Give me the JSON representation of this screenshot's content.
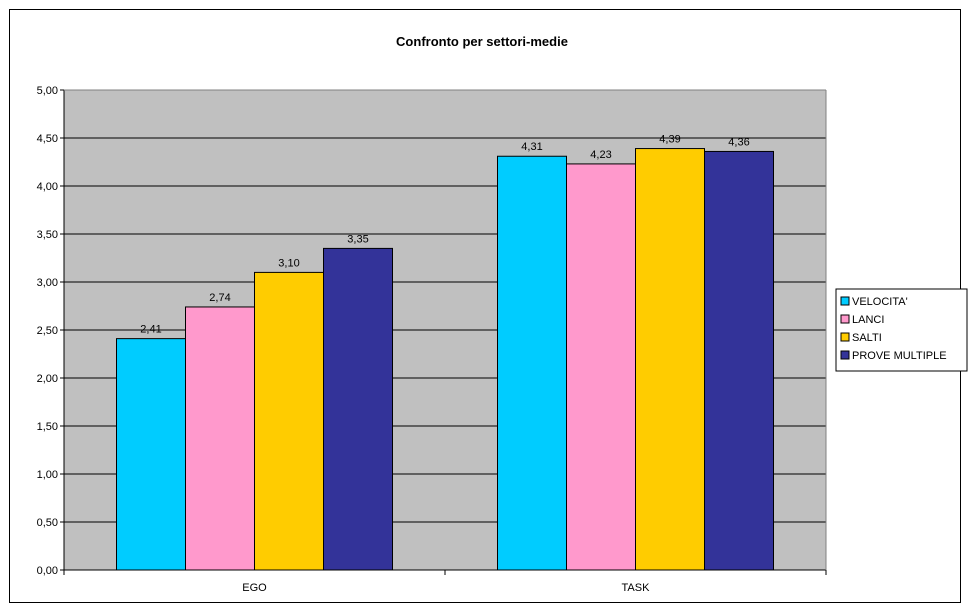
{
  "chart_data": {
    "type": "bar",
    "title": "Confronto per settori-medie",
    "categories": [
      "EGO",
      "TASK"
    ],
    "series": [
      {
        "name": "VELOCITA'",
        "color": "#00ccff",
        "values": [
          2.41,
          4.31
        ],
        "labels": [
          "2,41",
          "4,31"
        ]
      },
      {
        "name": "LANCI",
        "color": "#ff99cc",
        "values": [
          2.74,
          4.23
        ],
        "labels": [
          "2,74",
          "4,23"
        ]
      },
      {
        "name": "SALTI",
        "color": "#ffcc00",
        "values": [
          3.1,
          4.39
        ],
        "labels": [
          "3,10",
          "4,39"
        ]
      },
      {
        "name": "PROVE MULTIPLE",
        "color": "#333399",
        "values": [
          3.35,
          4.36
        ],
        "labels": [
          "3,35",
          "4,36"
        ]
      }
    ],
    "ylim": [
      0,
      5
    ],
    "y_ticks": [
      0,
      0.5,
      1,
      1.5,
      2,
      2.5,
      3,
      3.5,
      4,
      4.5,
      5
    ],
    "y_tick_labels": [
      "0,00",
      "0,50",
      "1,00",
      "1,50",
      "2,00",
      "2,50",
      "3,00",
      "3,50",
      "4,00",
      "4,50",
      "5,00"
    ],
    "grid": true,
    "plot_background": "#c0c0c0",
    "legend_position": "right"
  }
}
